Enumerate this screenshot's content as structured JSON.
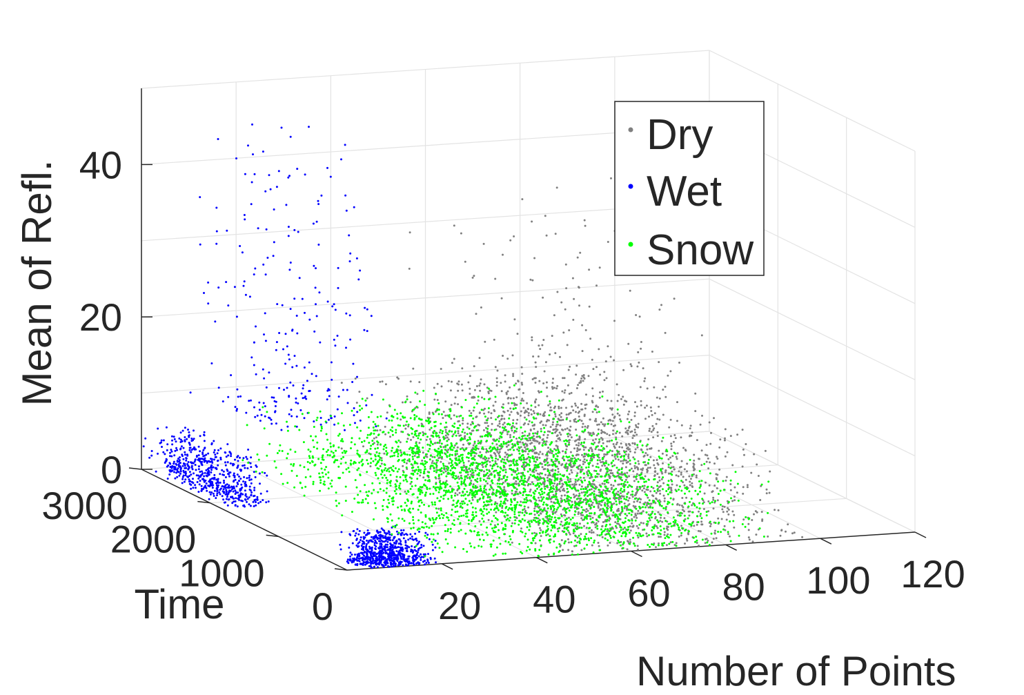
{
  "chart_data": {
    "type": "scatter",
    "projection": "3d",
    "xlabel": "Number of Points",
    "ylabel": "Time",
    "zlabel": "Mean of Refl.",
    "xlim": [
      0,
      120
    ],
    "ylim": [
      0,
      3000
    ],
    "zlim": [
      0,
      50
    ],
    "x_ticks": [
      20,
      40,
      60,
      80,
      100,
      120
    ],
    "y_ticks": [
      0,
      1000,
      2000,
      3000
    ],
    "z_ticks": [
      0,
      20,
      40
    ],
    "grid": true,
    "legend_position": "top-right",
    "series": [
      {
        "name": "Dry",
        "color": "#808080",
        "clusters": [
          {
            "x_range": [
              38,
              100
            ],
            "y_range": [
              0,
              3000
            ],
            "z_range": [
              0,
              12
            ],
            "count": 2200
          },
          {
            "x_range": [
              50,
              110
            ],
            "y_range": [
              1500,
              3000
            ],
            "z_range": [
              5,
              35
            ],
            "count": 250
          }
        ]
      },
      {
        "name": "Wet",
        "color": "#0000ff",
        "clusters": [
          {
            "x_range": [
              1,
              20
            ],
            "y_range": [
              0,
              300
            ],
            "z_range": [
              0,
              4
            ],
            "count": 700
          },
          {
            "x_range": [
              0,
              12
            ],
            "y_range": [
              1800,
              3000
            ],
            "z_range": [
              0,
              6
            ],
            "count": 600
          },
          {
            "x_range": [
              8,
              40
            ],
            "y_range": [
              2000,
              3000
            ],
            "z_range": [
              8,
              45
            ],
            "count": 250
          }
        ]
      },
      {
        "name": "Snow",
        "color": "#00ff00",
        "clusters": [
          {
            "x_range": [
              15,
              95
            ],
            "y_range": [
              0,
              3000
            ],
            "z_range": [
              0,
              8
            ],
            "count": 2600
          }
        ]
      }
    ]
  }
}
